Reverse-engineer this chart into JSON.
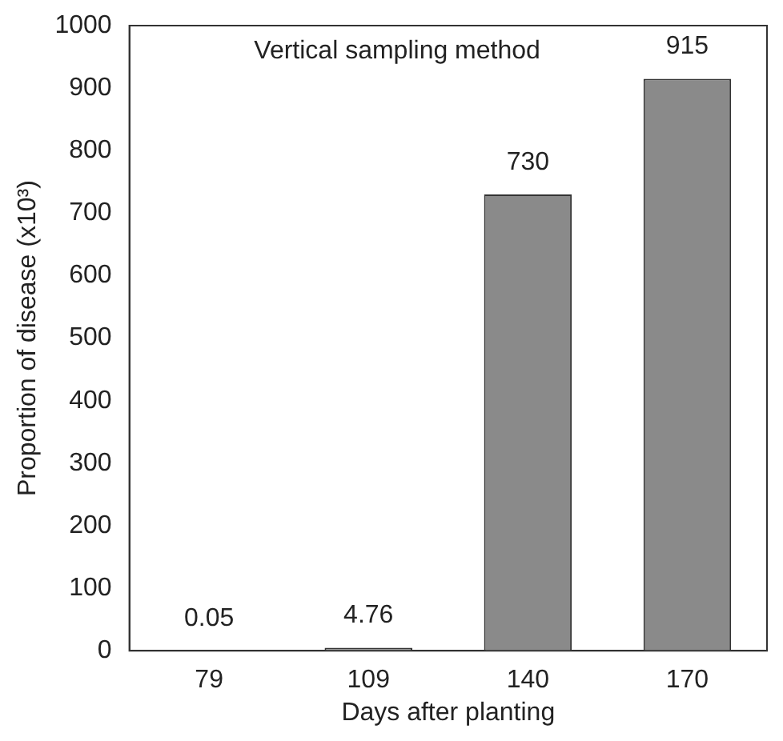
{
  "chart_data": {
    "type": "bar",
    "title": "Vertical sampling method",
    "xlabel": "Days after planting",
    "ylabel": "Proportion of disease (x10³)",
    "categories": [
      "79",
      "109",
      "140",
      "170"
    ],
    "values": [
      0.05,
      4.76,
      730,
      915
    ],
    "color": "#8a8a8a",
    "ylim": [
      0,
      1000
    ],
    "yticks": [
      0,
      100,
      200,
      300,
      400,
      500,
      600,
      700,
      800,
      900,
      1000
    ],
    "data_labels": true,
    "grid": false,
    "legend": false
  }
}
